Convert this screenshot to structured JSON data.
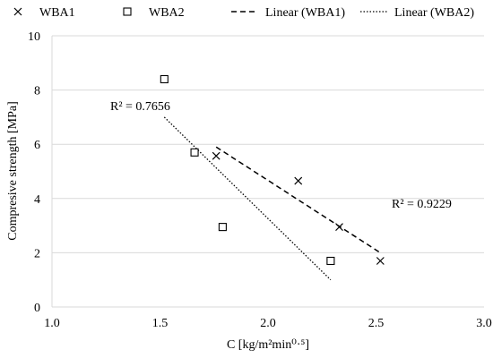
{
  "chart_data": {
    "type": "scatter",
    "title": "",
    "xlabel": "C [kg/m²min⁰·⁵]",
    "ylabel": "Compresive strength [MPa]",
    "xlim": [
      1.0,
      3.0
    ],
    "ylim": [
      0,
      10
    ],
    "x_ticks": [
      "1.0",
      "1.5",
      "2.0",
      "2.5",
      "3.0"
    ],
    "y_ticks": [
      "0",
      "2",
      "4",
      "6",
      "8",
      "10"
    ],
    "grid": "horizontal",
    "legend_position": "top",
    "series": [
      {
        "name": "WBA1",
        "marker": "x",
        "points": [
          [
            1.76,
            5.57
          ],
          [
            2.14,
            4.65
          ],
          [
            2.33,
            2.95
          ],
          [
            2.52,
            1.7
          ]
        ]
      },
      {
        "name": "WBA2",
        "marker": "square",
        "points": [
          [
            1.52,
            8.4
          ],
          [
            1.66,
            5.7
          ],
          [
            1.79,
            2.95
          ],
          [
            2.29,
            1.7
          ]
        ]
      }
    ],
    "trendlines": [
      {
        "name": "Linear (WBA1)",
        "style": "dashed",
        "x_range": [
          1.76,
          2.52
        ],
        "y_range": [
          5.9,
          2.0
        ],
        "r2_label": "R² = 0.9229"
      },
      {
        "name": "Linear (WBA2)",
        "style": "dotted",
        "x_range": [
          1.52,
          2.29
        ],
        "y_range": [
          7.0,
          1.0
        ],
        "r2_label": "R² = 0.7656"
      }
    ],
    "colors": {
      "marker": "#000000",
      "grid": "#d9d9d9",
      "axis": "#7f7f7f"
    }
  }
}
